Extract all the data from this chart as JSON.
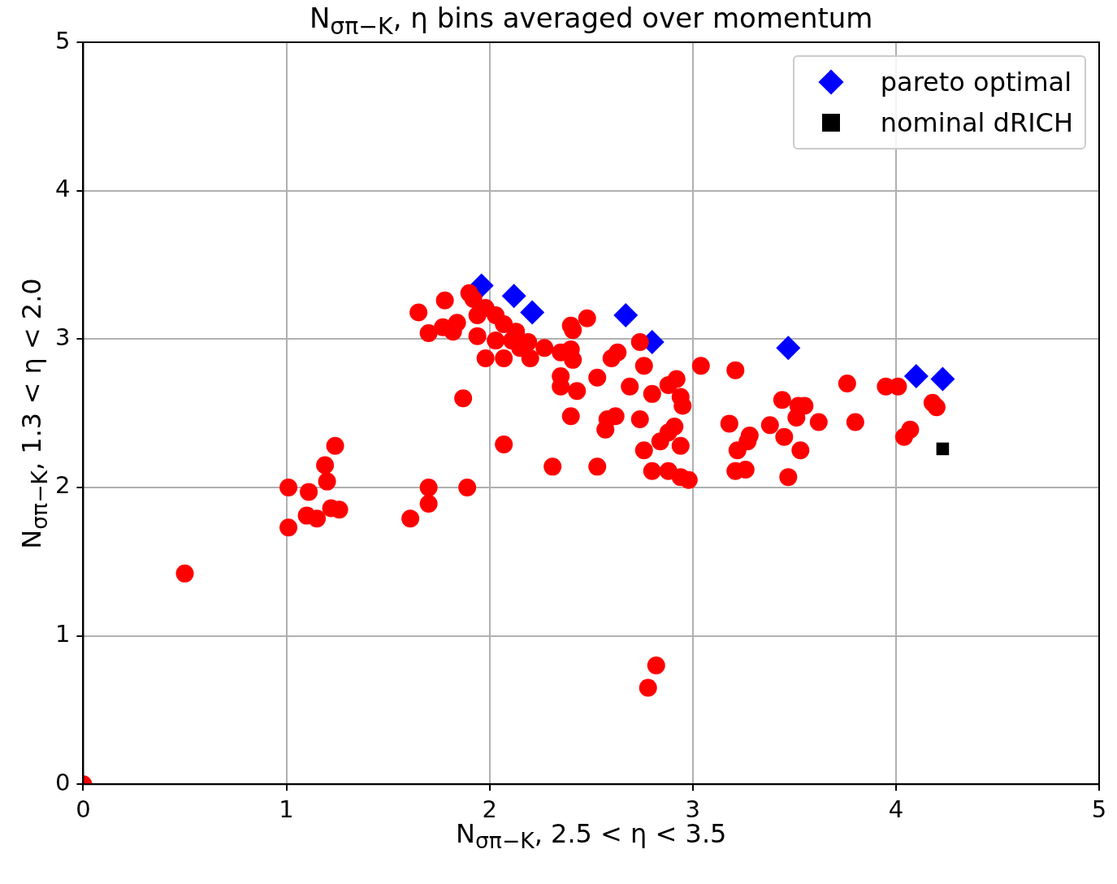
{
  "chart_data": {
    "type": "scatter",
    "title": "N$_{σπ−K}$, η bins averaged over momentum",
    "xlabel": "N$_{σπ−K}$,  2.5 < η < 3.5",
    "ylabel": "N$_{σπ−K}$,  1.3 < η < 2.0",
    "xlim": [
      0,
      5
    ],
    "ylim": [
      0,
      5
    ],
    "xticks": [
      0,
      1,
      2,
      3,
      4,
      5
    ],
    "yticks": [
      0,
      1,
      2,
      3,
      4,
      5
    ],
    "grid": true,
    "legend": "top right",
    "series": [
      {
        "color": "#ff0000",
        "marker": "circle",
        "x": [
          0,
          0.5,
          1.01,
          1.01,
          1.11,
          1.1,
          1.15,
          1.19,
          1.2,
          1.24,
          1.22,
          1.26,
          1.61,
          1.7,
          1.7,
          1.89,
          1.87,
          2.07,
          2.31,
          2.53,
          1.65,
          1.78,
          1.7,
          1.77,
          1.84,
          1.82,
          1.9,
          1.92,
          1.94,
          1.94,
          1.98,
          2.03,
          2.07,
          2.07,
          2.13,
          2.15,
          2.2,
          2.27,
          2.35,
          2.4,
          2.4,
          2.41,
          2.35,
          2.35,
          2.41,
          2.43,
          2.4,
          2.48,
          2.53,
          2.57,
          2.58,
          2.62,
          2.6,
          2.63,
          2.69,
          2.74,
          2.74,
          2.76,
          2.76,
          2.8,
          2.8,
          2.78,
          2.82,
          2.84,
          2.88,
          2.91,
          2.88,
          2.92,
          2.94,
          2.95,
          2.94,
          2.88,
          2.94,
          2.98,
          3.04,
          3.18,
          3.21,
          3.22,
          3.21,
          3.26,
          3.27,
          3.28,
          3.38,
          3.44,
          3.45,
          3.47,
          3.52,
          3.51,
          3.55,
          3.53,
          3.62,
          3.76,
          3.8,
          3.95,
          4.01,
          4.04,
          4.07,
          4.18,
          4.2,
          2.03,
          2.11,
          2.19,
          1.98
        ],
        "values": [
          0,
          1.42,
          2,
          1.73,
          1.97,
          1.81,
          1.79,
          2.15,
          2.04,
          2.28,
          1.86,
          1.85,
          1.79,
          1.89,
          2,
          2,
          2.6,
          2.29,
          2.14,
          2.14,
          3.18,
          3.26,
          3.04,
          3.08,
          3.11,
          3.05,
          3.31,
          3.27,
          3.16,
          3.02,
          2.87,
          3.16,
          3.1,
          2.87,
          3.05,
          2.94,
          2.87,
          2.94,
          2.91,
          2.93,
          3.09,
          3.06,
          2.75,
          2.68,
          2.86,
          2.65,
          2.48,
          3.14,
          2.74,
          2.39,
          2.46,
          2.48,
          2.87,
          2.91,
          2.68,
          2.98,
          2.46,
          2.82,
          2.25,
          2.11,
          2.63,
          0.65,
          0.8,
          2.31,
          2.37,
          2.41,
          2.69,
          2.73,
          2.61,
          2.55,
          2.28,
          2.11,
          2.07,
          2.05,
          2.82,
          2.43,
          2.79,
          2.25,
          2.11,
          2.12,
          2.31,
          2.35,
          2.42,
          2.59,
          2.34,
          2.07,
          2.55,
          2.47,
          2.55,
          2.25,
          2.44,
          2.7,
          2.44,
          2.68,
          2.68,
          2.34,
          2.39,
          2.57,
          2.54,
          2.99,
          2.99,
          2.98,
          3.21
        ]
      },
      {
        "name": "pareto optimal",
        "color": "#0000ff",
        "marker": "diamond",
        "x": [
          1.96,
          2.12,
          2.21,
          2.67,
          2.8,
          3.47,
          4.1,
          4.23
        ],
        "values": [
          3.36,
          3.29,
          3.18,
          3.16,
          2.98,
          2.94,
          2.75,
          2.73
        ]
      },
      {
        "name": "nominal dRICH",
        "color": "#000000",
        "marker": "square",
        "x": [
          4.23
        ],
        "values": [
          2.26
        ]
      }
    ]
  }
}
